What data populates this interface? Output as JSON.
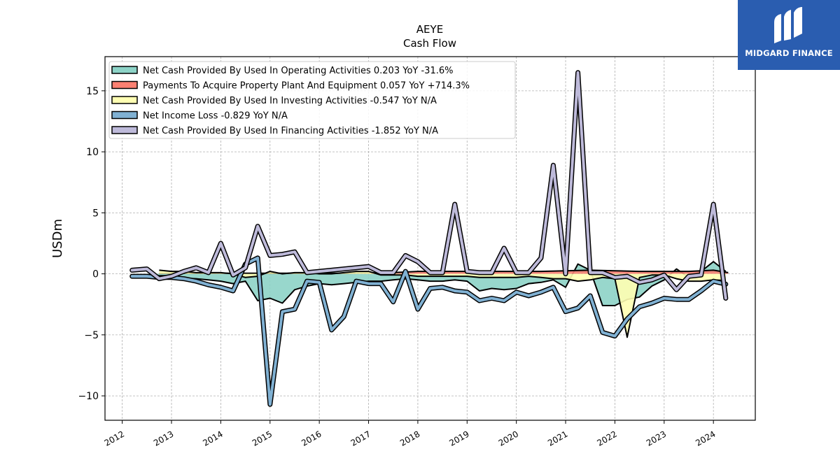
{
  "logo": {
    "text": "MIDGARD FINANCE",
    "icon": "midgard-m-icon",
    "background": "#2a5db0"
  },
  "chart_data": {
    "type": "line",
    "title": "AEYE",
    "subtitle": "Cash Flow",
    "xlabel": "",
    "ylabel": "USDm",
    "xlim": [
      2011.65,
      2024.85
    ],
    "ylim": [
      -12.0,
      17.8
    ],
    "xticks": [
      2012,
      2013,
      2014,
      2015,
      2016,
      2017,
      2018,
      2019,
      2020,
      2021,
      2022,
      2023,
      2024
    ],
    "xtick_labels": [
      "2012",
      "2013",
      "2014",
      "2015",
      "2016",
      "2017",
      "2018",
      "2019",
      "2020",
      "2021",
      "2022",
      "2023",
      "2024"
    ],
    "yticks": [
      -10,
      -5,
      0,
      5,
      10,
      15
    ],
    "ytick_labels": [
      "−10",
      "−5",
      "0",
      "5",
      "10",
      "15"
    ],
    "grid": true,
    "legend_position": "top-left",
    "series": [
      {
        "name": "Net Cash Provided By Used In Operating Activities",
        "legend": "Net Cash Provided By Used In Operating Activities  0.203 YoY -31.6%",
        "color": "#8dd3c7",
        "style": "area",
        "points": [
          [
            2012.2,
            -0.2
          ],
          [
            2012.5,
            -0.2
          ],
          [
            2012.75,
            -0.3
          ],
          [
            2013.0,
            -0.3
          ],
          [
            2013.25,
            -0.35
          ],
          [
            2013.5,
            -0.4
          ],
          [
            2013.75,
            -0.5
          ],
          [
            2014.0,
            -0.6
          ],
          [
            2014.25,
            -0.8
          ],
          [
            2014.5,
            -0.6
          ],
          [
            2014.75,
            -2.2
          ],
          [
            2015.0,
            -2.0
          ],
          [
            2015.25,
            -2.4
          ],
          [
            2015.5,
            -1.3
          ],
          [
            2015.75,
            -1.0
          ],
          [
            2016.0,
            -0.8
          ],
          [
            2016.25,
            -0.9
          ],
          [
            2016.5,
            -0.8
          ],
          [
            2016.75,
            -0.7
          ],
          [
            2017.0,
            -0.6
          ],
          [
            2017.25,
            -0.6
          ],
          [
            2017.5,
            -0.5
          ],
          [
            2017.75,
            -0.4
          ],
          [
            2018.0,
            -0.5
          ],
          [
            2018.25,
            -0.6
          ],
          [
            2018.5,
            -0.6
          ],
          [
            2018.75,
            -0.5
          ],
          [
            2019.0,
            -0.6
          ],
          [
            2019.25,
            -1.4
          ],
          [
            2019.5,
            -1.2
          ],
          [
            2019.75,
            -1.3
          ],
          [
            2020.0,
            -1.2
          ],
          [
            2020.25,
            -0.8
          ],
          [
            2020.5,
            -0.7
          ],
          [
            2020.75,
            -0.5
          ],
          [
            2021.0,
            -1.1
          ],
          [
            2021.25,
            0.8
          ],
          [
            2021.5,
            0.3
          ],
          [
            2021.75,
            -2.6
          ],
          [
            2022.0,
            -2.6
          ],
          [
            2022.25,
            -2.1
          ],
          [
            2022.5,
            -1.9
          ],
          [
            2022.75,
            -1.0
          ],
          [
            2023.0,
            -0.5
          ],
          [
            2023.25,
            0.4
          ],
          [
            2023.5,
            -0.3
          ],
          [
            2023.75,
            0.2
          ],
          [
            2024.0,
            1.0
          ],
          [
            2024.25,
            0.2
          ]
        ]
      },
      {
        "name": "Payments To Acquire Property Plant And Equipment",
        "legend": "Payments To Acquire Property Plant And Equipment  0.057 YoY +714.3%",
        "color": "#fb8072",
        "style": "area",
        "points": [
          [
            2012.75,
            0.05
          ],
          [
            2013.5,
            0.05
          ],
          [
            2014.5,
            0.05
          ],
          [
            2015.5,
            0.05
          ],
          [
            2016.5,
            0.05
          ],
          [
            2017.5,
            0.1
          ],
          [
            2018.0,
            0.2
          ],
          [
            2018.5,
            0.2
          ],
          [
            2019.0,
            0.2
          ],
          [
            2019.5,
            0.2
          ],
          [
            2020.0,
            0.2
          ],
          [
            2020.5,
            0.2
          ],
          [
            2021.0,
            0.25
          ],
          [
            2021.5,
            0.3
          ],
          [
            2022.0,
            0.25
          ],
          [
            2022.5,
            0.2
          ],
          [
            2023.0,
            0.2
          ],
          [
            2023.5,
            0.2
          ],
          [
            2024.0,
            0.3
          ],
          [
            2024.3,
            0.1
          ]
        ]
      },
      {
        "name": "Net Cash Provided By Used In Investing Activities",
        "legend": "Net Cash Provided By Used In Investing Activities  -0.547 YoY N/A",
        "color": "#ffffb3",
        "style": "area",
        "points": [
          [
            2012.75,
            0.3
          ],
          [
            2013.0,
            0.2
          ],
          [
            2013.25,
            0.2
          ],
          [
            2013.5,
            0.1
          ],
          [
            2013.75,
            0.1
          ],
          [
            2014.0,
            0.1
          ],
          [
            2014.25,
            0.0
          ],
          [
            2014.5,
            -0.3
          ],
          [
            2014.75,
            -0.2
          ],
          [
            2015.0,
            0.2
          ],
          [
            2015.25,
            0.0
          ],
          [
            2015.5,
            0.1
          ],
          [
            2015.75,
            0.1
          ],
          [
            2016.0,
            0.0
          ],
          [
            2016.25,
            0.0
          ],
          [
            2016.5,
            0.1
          ],
          [
            2016.75,
            0.2
          ],
          [
            2017.0,
            0.2
          ],
          [
            2017.25,
            -0.1
          ],
          [
            2017.5,
            -0.1
          ],
          [
            2017.75,
            -0.1
          ],
          [
            2018.0,
            -0.2
          ],
          [
            2018.25,
            -0.2
          ],
          [
            2018.5,
            -0.2
          ],
          [
            2018.75,
            -0.2
          ],
          [
            2019.0,
            -0.2
          ],
          [
            2019.25,
            -0.3
          ],
          [
            2019.5,
            -0.3
          ],
          [
            2019.75,
            -0.3
          ],
          [
            2020.0,
            -0.3
          ],
          [
            2020.25,
            -0.2
          ],
          [
            2020.5,
            -0.3
          ],
          [
            2020.75,
            -0.4
          ],
          [
            2021.0,
            -0.4
          ],
          [
            2021.25,
            -0.6
          ],
          [
            2021.5,
            -0.5
          ],
          [
            2021.75,
            -0.3
          ],
          [
            2022.0,
            -0.4
          ],
          [
            2022.25,
            -5.2
          ],
          [
            2022.5,
            -0.3
          ],
          [
            2022.75,
            -0.1
          ],
          [
            2023.0,
            -0.1
          ],
          [
            2023.25,
            -0.4
          ],
          [
            2023.5,
            -0.6
          ],
          [
            2023.75,
            -0.6
          ],
          [
            2024.0,
            -0.5
          ],
          [
            2024.25,
            -0.55
          ]
        ]
      },
      {
        "name": "Net Income Loss",
        "legend": "Net Income Loss  -0.829 YoY N/A",
        "color": "#80b1d3",
        "style": "line",
        "points": [
          [
            2012.2,
            -0.2
          ],
          [
            2012.5,
            -0.2
          ],
          [
            2012.75,
            -0.3
          ],
          [
            2013.0,
            -0.3
          ],
          [
            2013.25,
            -0.4
          ],
          [
            2013.5,
            -0.6
          ],
          [
            2013.75,
            -0.9
          ],
          [
            2014.0,
            -1.1
          ],
          [
            2014.25,
            -1.4
          ],
          [
            2014.5,
            0.8
          ],
          [
            2014.75,
            1.3
          ],
          [
            2015.0,
            -10.7
          ],
          [
            2015.25,
            -3.1
          ],
          [
            2015.5,
            -2.9
          ],
          [
            2015.75,
            -0.6
          ],
          [
            2016.0,
            -0.7
          ],
          [
            2016.25,
            -4.6
          ],
          [
            2016.5,
            -3.5
          ],
          [
            2016.75,
            -0.6
          ],
          [
            2017.0,
            -0.8
          ],
          [
            2017.25,
            -0.8
          ],
          [
            2017.5,
            -2.3
          ],
          [
            2017.75,
            0.2
          ],
          [
            2018.0,
            -2.9
          ],
          [
            2018.25,
            -1.2
          ],
          [
            2018.5,
            -1.1
          ],
          [
            2018.75,
            -1.4
          ],
          [
            2019.0,
            -1.5
          ],
          [
            2019.25,
            -2.2
          ],
          [
            2019.5,
            -2.0
          ],
          [
            2019.75,
            -2.2
          ],
          [
            2020.0,
            -1.5
          ],
          [
            2020.25,
            -1.8
          ],
          [
            2020.5,
            -1.5
          ],
          [
            2020.75,
            -1.1
          ],
          [
            2021.0,
            -3.1
          ],
          [
            2021.25,
            -2.8
          ],
          [
            2021.5,
            -1.8
          ],
          [
            2021.75,
            -4.8
          ],
          [
            2022.0,
            -5.1
          ],
          [
            2022.25,
            -3.7
          ],
          [
            2022.5,
            -2.7
          ],
          [
            2022.75,
            -2.4
          ],
          [
            2023.0,
            -2.0
          ],
          [
            2023.25,
            -2.1
          ],
          [
            2023.5,
            -2.1
          ],
          [
            2023.75,
            -1.4
          ],
          [
            2024.0,
            -0.6
          ],
          [
            2024.25,
            -0.85
          ]
        ]
      },
      {
        "name": "Net Cash Provided By Used In Financing Activities",
        "legend": "Net Cash Provided By Used In Financing Activities  -1.852 YoY N/A",
        "color": "#bebada",
        "style": "line",
        "points": [
          [
            2012.2,
            0.3
          ],
          [
            2012.5,
            0.4
          ],
          [
            2012.75,
            -0.4
          ],
          [
            2013.0,
            -0.2
          ],
          [
            2013.25,
            0.2
          ],
          [
            2013.5,
            0.5
          ],
          [
            2013.75,
            0.1
          ],
          [
            2014.0,
            2.5
          ],
          [
            2014.25,
            -0.1
          ],
          [
            2014.5,
            0.5
          ],
          [
            2014.75,
            3.9
          ],
          [
            2015.0,
            1.5
          ],
          [
            2015.25,
            1.6
          ],
          [
            2015.5,
            1.8
          ],
          [
            2015.75,
            0.1
          ],
          [
            2016.0,
            0.2
          ],
          [
            2016.25,
            0.3
          ],
          [
            2016.5,
            0.4
          ],
          [
            2016.75,
            0.5
          ],
          [
            2017.0,
            0.6
          ],
          [
            2017.25,
            0.1
          ],
          [
            2017.5,
            0.1
          ],
          [
            2017.75,
            1.5
          ],
          [
            2018.0,
            1.0
          ],
          [
            2018.25,
            0.1
          ],
          [
            2018.5,
            0.1
          ],
          [
            2018.75,
            5.7
          ],
          [
            2019.0,
            0.2
          ],
          [
            2019.25,
            0.1
          ],
          [
            2019.5,
            0.1
          ],
          [
            2019.75,
            2.1
          ],
          [
            2020.0,
            0.1
          ],
          [
            2020.25,
            0.1
          ],
          [
            2020.5,
            1.3
          ],
          [
            2020.75,
            8.9
          ],
          [
            2021.0,
            0.0
          ],
          [
            2021.25,
            16.5
          ],
          [
            2021.5,
            0.1
          ],
          [
            2021.75,
            0.1
          ],
          [
            2022.0,
            -0.3
          ],
          [
            2022.25,
            -0.2
          ],
          [
            2022.5,
            -0.7
          ],
          [
            2022.75,
            -0.5
          ],
          [
            2023.0,
            -0.1
          ],
          [
            2023.25,
            -1.3
          ],
          [
            2023.5,
            -0.2
          ],
          [
            2023.75,
            -0.1
          ],
          [
            2024.0,
            5.7
          ],
          [
            2024.25,
            -2.0
          ]
        ]
      }
    ]
  }
}
